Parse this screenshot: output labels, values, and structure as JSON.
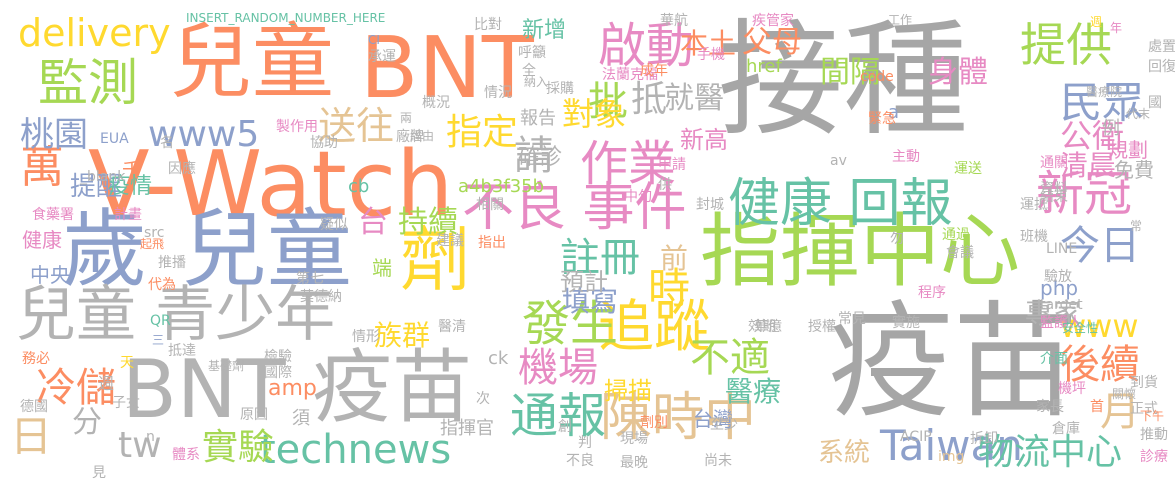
{
  "words": [
    {
      "text": "接種",
      "color": "#a6a6a6",
      "vertical": false
    },
    {
      "text": "疫苗",
      "color": "#a6a6a6",
      "vertical": false
    },
    {
      "text": "指揮中心",
      "color": "#a6d854",
      "vertical": false
    },
    {
      "text": "兒童",
      "color": "#fc8d62",
      "vertical": false
    },
    {
      "text": "BNT",
      "color": "#fc8d62",
      "vertical": false
    },
    {
      "text": "V-Watch",
      "color": "#fc8d62",
      "vertical": false
    },
    {
      "text": "歲",
      "color": "#8da0cb",
      "vertical": false
    },
    {
      "text": "兒童",
      "color": "#8da0cb",
      "vertical": false
    },
    {
      "text": "兒童 青少年",
      "color": "#b3b3b3",
      "vertical": false
    },
    {
      "text": "BNT",
      "color": "#b3b3b3",
      "vertical": false
    },
    {
      "text": "疫苗",
      "color": "#b3b3b3",
      "vertical": false
    },
    {
      "text": "劑",
      "color": "#ffd92f",
      "vertical": false
    },
    {
      "text": "監測",
      "color": "#a6d854",
      "vertical": false
    },
    {
      "text": "delivery",
      "color": "#ffd92f",
      "vertical": false
    },
    {
      "text": "www5",
      "color": "#8da0cb",
      "vertical": false
    },
    {
      "text": "啟動",
      "color": "#e78ac3",
      "vertical": false
    },
    {
      "text": "提供",
      "color": "#a6d854",
      "vertical": false
    },
    {
      "text": "民眾",
      "color": "#8da0cb",
      "vertical": false
    },
    {
      "text": "作業",
      "color": "#e78ac3",
      "vertical": false
    },
    {
      "text": "不良 事件",
      "color": "#e78ac3",
      "vertical": false
    },
    {
      "text": "健康 回報",
      "color": "#66c2a5",
      "vertical": false
    },
    {
      "text": "新冠",
      "color": "#e78ac3",
      "vertical": false
    },
    {
      "text": "今日",
      "color": "#8da0cb",
      "vertical": false
    },
    {
      "text": "追蹤",
      "color": "#ffd92f",
      "vertical": false
    },
    {
      "text": "發生",
      "color": "#a6d854",
      "vertical": false
    },
    {
      "text": "陳時中",
      "color": "#e5c494",
      "vertical": false
    },
    {
      "text": "通報",
      "color": "#66c2a5",
      "vertical": false
    },
    {
      "text": "不適",
      "color": "#a6d854",
      "vertical": false
    },
    {
      "text": "technews",
      "color": "#66c2a5",
      "vertical": false
    },
    {
      "text": "Taiwan",
      "color": "#8da0cb",
      "vertical": false
    },
    {
      "text": "物流中心",
      "color": "#66c2a5",
      "vertical": false
    },
    {
      "text": "www",
      "color": "#ffd92f",
      "vertical": false
    },
    {
      "text": "後續",
      "color": "#fc8d62",
      "vertical": false
    },
    {
      "text": "月",
      "color": "#e5c494",
      "vertical": false
    },
    {
      "text": "專家",
      "color": "#b3b3b3",
      "vertical": false
    },
    {
      "text": "機場",
      "color": "#e78ac3",
      "vertical": false
    },
    {
      "text": "註冊",
      "color": "#66c2a5",
      "vertical": false
    },
    {
      "text": "填寫",
      "color": "#8da0cb",
      "vertical": false
    },
    {
      "text": "時",
      "color": "#ffd92f",
      "vertical": false
    },
    {
      "text": "預計",
      "color": "#b3b3b3",
      "vertical": false
    },
    {
      "text": "前",
      "color": "#e5c494",
      "vertical": false
    },
    {
      "text": "掃描",
      "color": "#ffd92f",
      "vertical": false
    },
    {
      "text": "醫療",
      "color": "#66c2a5",
      "vertical": false
    },
    {
      "text": "台灣",
      "color": "#8da0cb",
      "vertical": false
    },
    {
      "text": "系統",
      "color": "#e5c494",
      "vertical": false
    },
    {
      "text": "實驗",
      "color": "#a6d854",
      "vertical": false
    },
    {
      "text": "冷儲",
      "color": "#fc8d62",
      "vertical": false
    },
    {
      "text": "日",
      "color": "#e5c494",
      "vertical": false
    },
    {
      "text": "分",
      "color": "#b3b3b3",
      "vertical": false
    },
    {
      "text": "tw",
      "color": "#b3b3b3",
      "vertical": false
    },
    {
      "text": "萬",
      "color": "#fc8d62",
      "vertical": false
    },
    {
      "text": "桃園",
      "color": "#8da0cb",
      "vertical": false
    },
    {
      "text": "提醒",
      "color": "#8da0cb",
      "vertical": false
    },
    {
      "text": "送往",
      "color": "#e5c494",
      "vertical": false
    },
    {
      "text": "指定",
      "color": "#ffd92f",
      "vertical": false
    },
    {
      "text": "請",
      "color": "#b3b3b3",
      "vertical": false
    },
    {
      "text": "批",
      "color": "#a6d854",
      "vertical": false
    },
    {
      "text": "抵",
      "color": "#b3b3b3",
      "vertical": false
    },
    {
      "text": "對象",
      "color": "#ffd92f",
      "vertical": false
    },
    {
      "text": "就醫",
      "color": "#b3b3b3",
      "vertical": false
    },
    {
      "text": "台",
      "color": "#e78ac3",
      "vertical": false
    },
    {
      "text": "持續",
      "color": "#a6d854",
      "vertical": false
    },
    {
      "text": "族群",
      "color": "#ffd92f",
      "vertical": false
    },
    {
      "text": "端",
      "color": "#a6d854",
      "vertical": false
    },
    {
      "text": "間隔",
      "color": "#a6d854",
      "vertical": false
    },
    {
      "text": "身體",
      "color": "#e78ac3",
      "vertical": false
    },
    {
      "text": "父母",
      "color": "#fc8d62",
      "vertical": false
    },
    {
      "text": "公衛",
      "color": "#e78ac3",
      "vertical": false
    },
    {
      "text": "清晨",
      "color": "#e78ac3",
      "vertical": false
    },
    {
      "text": "新增",
      "color": "#66c2a5",
      "vertical": false
    },
    {
      "text": "本土",
      "color": "#fc8d62",
      "vertical": false
    },
    {
      "text": "a4b3f35b",
      "color": "#a6d854",
      "vertical": false
    },
    {
      "text": "確診",
      "color": "#b3b3b3",
      "vertical": false
    },
    {
      "text": "報告",
      "color": "#b3b3b3",
      "vertical": false
    },
    {
      "text": "新高",
      "color": "#e78ac3",
      "vertical": false
    },
    {
      "text": "疫情",
      "color": "#66c2a5",
      "vertical": false
    },
    {
      "text": "千",
      "color": "#fc8d62",
      "vertical": false
    },
    {
      "text": "href",
      "color": "#a6d854",
      "vertical": false
    },
    {
      "text": "cb",
      "color": "#66c2a5",
      "vertical": false
    },
    {
      "text": "ck",
      "color": "#b3b3b3",
      "vertical": false
    },
    {
      "text": "amp",
      "color": "#fc8d62",
      "vertical": false
    },
    {
      "text": "php",
      "color": "#8da0cb",
      "vertical": false
    },
    {
      "text": "指揮官",
      "color": "#b3b3b3",
      "vertical": false
    },
    {
      "text": "規劃",
      "color": "#e78ac3",
      "vertical": false
    },
    {
      "text": "免費",
      "color": "#b3b3b3",
      "vertical": false
    },
    {
      "text": "例",
      "color": "#b3b3b3",
      "vertical": false
    },
    {
      "text": "a",
      "color": "#8da0cb",
      "vertical": false
    },
    {
      "text": "中央",
      "color": "#8da0cb",
      "vertical": false
    },
    {
      "text": "健康",
      "color": "#e78ac3",
      "vertical": false
    },
    {
      "text": "INSERT_RANDOM_NUMBER_HERE",
      "color": "#66c2a5",
      "vertical": false
    },
    {
      "text": "比對",
      "color": "#b3b3b3",
      "vertical": false
    },
    {
      "text": "華航",
      "color": "#b3b3b3",
      "vertical": false
    },
    {
      "text": "疾管家",
      "color": "#e78ac3",
      "vertical": false
    },
    {
      "text": "工作",
      "color": "#b3b3b3",
      "vertical": false
    },
    {
      "text": "週",
      "color": "#ffd92f",
      "vertical": false
    },
    {
      "text": "年",
      "color": "#e78ac3",
      "vertical": false
    },
    {
      "text": "處置",
      "color": "#b3b3b3",
      "vertical": false
    },
    {
      "text": "回復",
      "color": "#b3b3b3",
      "vertical": false
    },
    {
      "text": "CI",
      "color": "#8da0cb",
      "vertical": false
    },
    {
      "text": "承運",
      "color": "#b3b3b3",
      "vertical": false
    },
    {
      "text": "呼籲",
      "color": "#b3b3b3",
      "vertical": false
    },
    {
      "text": "手機",
      "color": "#e78ac3",
      "vertical": false
    },
    {
      "text": "醫療院",
      "color": "#b3b3b3",
      "vertical": false
    },
    {
      "text": "國",
      "color": "#b3b3b3",
      "vertical": false
    },
    {
      "text": "法蘭克福",
      "color": "#e78ac3",
      "vertical": false
    },
    {
      "text": "成年",
      "color": "#fc8d62",
      "vertical": false
    },
    {
      "text": "code",
      "color": "#fc8d62",
      "vertical": false
    },
    {
      "text": "採購",
      "color": "#b3b3b3",
      "vertical": false
    },
    {
      "text": "概況",
      "color": "#b3b3b3",
      "vertical": false
    },
    {
      "text": "情況",
      "color": "#b3b3b3",
      "vertical": false
    },
    {
      "text": "納入",
      "color": "#b3b3b3",
      "vertical": false
    },
    {
      "text": "兩",
      "color": "#b3b3b3",
      "vertical": false
    },
    {
      "text": "經由",
      "color": "#b3b3b3",
      "vertical": false
    },
    {
      "text": "代末",
      "color": "#b3b3b3",
      "vertical": false
    },
    {
      "text": "製作用",
      "color": "#e78ac3",
      "vertical": false
    },
    {
      "text": "廠牌",
      "color": "#b3b3b3",
      "vertical": false
    },
    {
      "text": "協助",
      "color": "#b3b3b3",
      "vertical": false
    },
    {
      "text": "EUA",
      "color": "#8da0cb",
      "vertical": false
    },
    {
      "text": "名",
      "color": "#b3b3b3",
      "vertical": false
    },
    {
      "text": "因應",
      "color": "#b3b3b3",
      "vertical": false
    },
    {
      "text": "_blank",
      "color": "#b3b3b3",
      "vertical": false
    },
    {
      "text": "緊急",
      "color": "#fc8d62",
      "vertical": false
    },
    {
      "text": "主動",
      "color": "#e78ac3",
      "vertical": false
    },
    {
      "text": "av",
      "color": "#b3b3b3",
      "vertical": false
    },
    {
      "text": "運送",
      "color": "#a6d854",
      "vertical": false
    },
    {
      "text": "通關",
      "color": "#e78ac3",
      "vertical": false
    },
    {
      "text": "申請",
      "color": "#e78ac3",
      "vertical": false
    },
    {
      "text": "供",
      "color": "#b3b3b3",
      "vertical": false
    },
    {
      "text": "中旬",
      "color": "#e78ac3",
      "vertical": false
    },
    {
      "text": "結束",
      "color": "#b3b3b3",
      "vertical": false
    },
    {
      "text": "運抵",
      "color": "#b3b3b3",
      "vertical": false
    },
    {
      "text": "資料",
      "color": "#b3b3b3",
      "vertical": false
    },
    {
      "text": "封城",
      "color": "#b3b3b3",
      "vertical": false
    },
    {
      "text": "相關",
      "color": "#b3b3b3",
      "vertical": false
    },
    {
      "text": "食藥署",
      "color": "#e78ac3",
      "vertical": false
    },
    {
      "text": "計畫",
      "color": "#e78ac3",
      "vertical": false
    },
    {
      "text": "疑似",
      "color": "#b3b3b3",
      "vertical": false
    },
    {
      "text": "src",
      "color": "#b3b3b3",
      "vertical": false
    },
    {
      "text": "起飛",
      "color": "#fc8d62",
      "vertical": false
    },
    {
      "text": "推播",
      "color": "#b3b3b3",
      "vertical": false
    },
    {
      "text": "代為",
      "color": "#fc8d62",
      "vertical": false
    },
    {
      "text": "QR",
      "color": "#66c2a5",
      "vertical": false
    },
    {
      "text": "三",
      "color": "#8da0cb",
      "vertical": false
    },
    {
      "text": "抵達",
      "color": "#b3b3b3",
      "vertical": false
    },
    {
      "text": "務必",
      "color": "#fc8d62",
      "vertical": false
    },
    {
      "text": "天",
      "color": "#ffd92f",
      "vertical": false
    },
    {
      "text": "基礎劑",
      "color": "#b3b3b3",
      "vertical": false
    },
    {
      "text": "檢驗",
      "color": "#b3b3b3",
      "vertical": false
    },
    {
      "text": "國際",
      "color": "#b3b3b3",
      "vertical": false
    },
    {
      "text": "莫德納",
      "color": "#b3b3b3",
      "vertical": false
    },
    {
      "text": "第七",
      "color": "#b3b3b3",
      "vertical": false
    },
    {
      "text": "情形",
      "color": "#b3b3b3",
      "vertical": false
    },
    {
      "text": "醫清",
      "color": "#b3b3b3",
      "vertical": false
    },
    {
      "text": "建議",
      "color": "#b3b3b3",
      "vertical": false
    },
    {
      "text": "指出",
      "color": "#fc8d62",
      "vertical": false
    },
    {
      "text": "勿",
      "color": "#b3b3b3",
      "vertical": false
    },
    {
      "text": "會議",
      "color": "#b3b3b3",
      "vertical": false
    },
    {
      "text": "通過",
      "color": "#a6d854",
      "vertical": false
    },
    {
      "text": "班機",
      "color": "#b3b3b3",
      "vertical": false
    },
    {
      "text": "LINE",
      "color": "#b3b3b3",
      "vertical": false
    },
    {
      "text": "常",
      "color": "#b3b3b3",
      "vertical": false
    },
    {
      "text": "驗放",
      "color": "#b3b3b3",
      "vertical": false
    },
    {
      "text": "程序",
      "color": "#e78ac3",
      "vertical": false
    },
    {
      "text": "target",
      "color": "#b3b3b3",
      "vertical": false
    },
    {
      "text": "監護人",
      "color": "#e78ac3",
      "vertical": false
    },
    {
      "text": "安全性",
      "color": "#66c2a5",
      "vertical": false
    },
    {
      "text": "常見",
      "color": "#b3b3b3",
      "vertical": false
    },
    {
      "text": "實施",
      "color": "#b3b3b3",
      "vertical": false
    },
    {
      "text": "華億",
      "color": "#b3b3b3",
      "vertical": false
    },
    {
      "text": "效期",
      "color": "#b3b3b3",
      "vertical": false
    },
    {
      "text": "授權",
      "color": "#b3b3b3",
      "vertical": false
    },
    {
      "text": "介面",
      "color": "#66c2a5",
      "vertical": false
    },
    {
      "text": "到貨",
      "color": "#b3b3b3",
      "vertical": false
    },
    {
      "text": "關懷",
      "color": "#b3b3b3",
      "vertical": false
    },
    {
      "text": "機坪",
      "color": "#e78ac3",
      "vertical": false
    },
    {
      "text": "首",
      "color": "#fc8d62",
      "vertical": false
    },
    {
      "text": "家長",
      "color": "#b3b3b3",
      "vertical": false
    },
    {
      "text": "正式",
      "color": "#b3b3b3",
      "vertical": false
    },
    {
      "text": "下午",
      "color": "#fc8d62",
      "vertical": false
    },
    {
      "text": "推動",
      "color": "#b3b3b3",
      "vertical": false
    },
    {
      "text": "診療",
      "color": "#e78ac3",
      "vertical": false
    },
    {
      "text": "倉庫",
      "color": "#b3b3b3",
      "vertical": false
    },
    {
      "text": "拆卸",
      "color": "#b3b3b3",
      "vertical": false
    },
    {
      "text": "ACIP",
      "color": "#b3b3b3",
      "vertical": false
    },
    {
      "text": "img",
      "color": "#e5c494",
      "vertical": false
    },
    {
      "text": "尚未",
      "color": "#b3b3b3",
      "vertical": false
    },
    {
      "text": "不良",
      "color": "#b3b3b3",
      "vertical": false
    },
    {
      "text": "最晚",
      "color": "#b3b3b3",
      "vertical": false
    },
    {
      "text": "劑別",
      "color": "#fc8d62",
      "vertical": false
    },
    {
      "text": "現場",
      "color": "#b3b3b3",
      "vertical": false
    },
    {
      "text": "判",
      "color": "#b3b3b3",
      "vertical": false
    },
    {
      "text": "創",
      "color": "#b3b3b3",
      "vertical": false
    },
    {
      "text": "次",
      "color": "#b3b3b3",
      "vertical": false
    },
    {
      "text": "至少",
      "color": "#b3b3b3",
      "vertical": false
    },
    {
      "text": "須",
      "color": "#b3b3b3",
      "vertical": false
    },
    {
      "text": "原因",
      "color": "#b3b3b3",
      "vertical": false
    },
    {
      "text": "德國",
      "color": "#b3b3b3",
      "vertical": false
    },
    {
      "text": "子女",
      "color": "#b3b3b3",
      "vertical": false
    },
    {
      "text": "n",
      "color": "#b3b3b3",
      "vertical": false
    },
    {
      "text": "體系",
      "color": "#e78ac3",
      "vertical": false
    },
    {
      "text": "見",
      "color": "#b3b3b3",
      "vertical": false
    },
    {
      "text": "週",
      "color": "#b3b3b3",
      "vertical": false
    },
    {
      "text": "全",
      "color": "#b3b3b3",
      "vertical": false
    }
  ]
}
